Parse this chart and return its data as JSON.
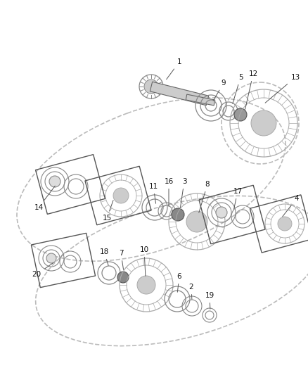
{
  "bg_color": "#ffffff",
  "fig_width": 4.38,
  "fig_height": 5.33,
  "dpi": 100,
  "line_color": "#555555",
  "gear_color": "#999999",
  "ring_color": "#777777",
  "dark_color": "#444444",
  "label_color": "#111111"
}
